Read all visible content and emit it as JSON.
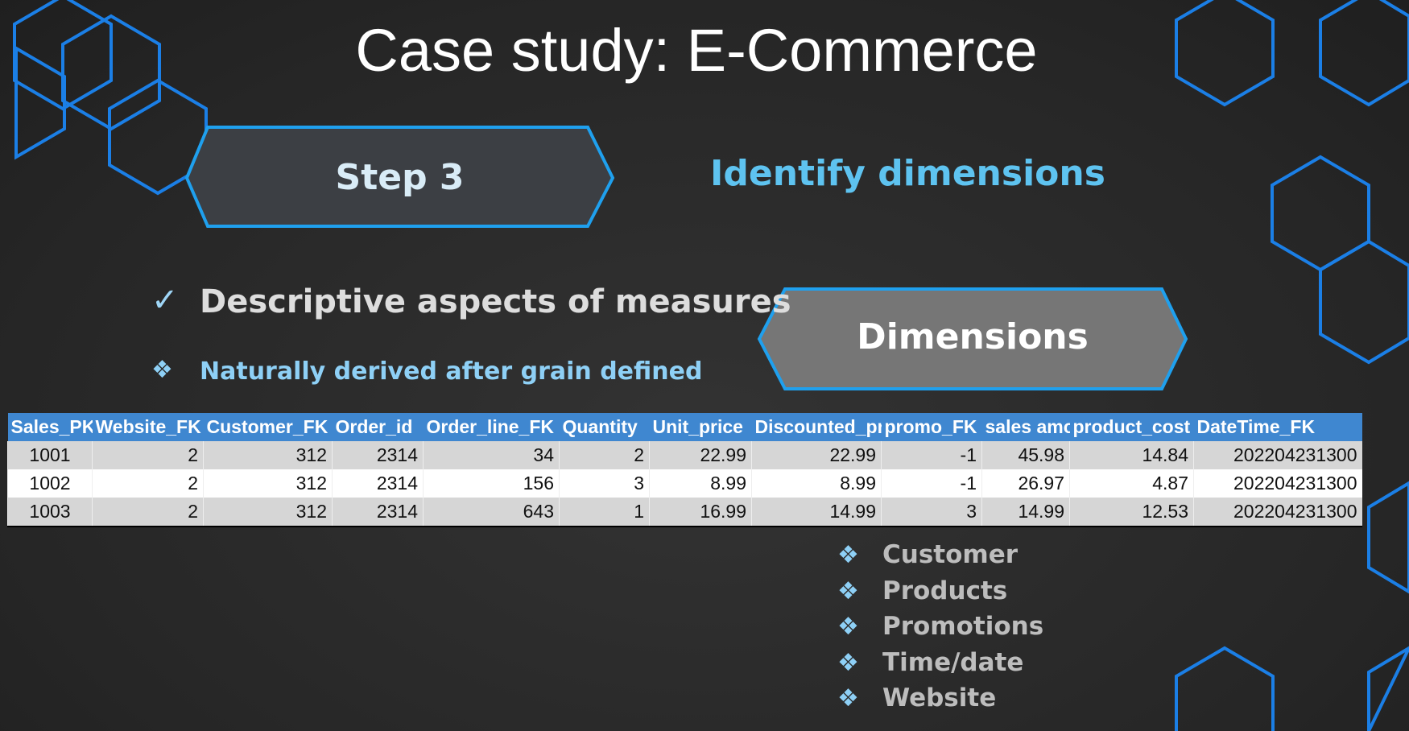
{
  "slide": {
    "title": "Case study: E-Commerce",
    "step_label": "Step 3",
    "step_heading": "Identify dimensions",
    "check_point": "Descriptive aspects of measures",
    "sub_point": "Naturally derived after grain defined",
    "dimensions_label": "Dimensions",
    "table": {
      "headers": [
        "Sales_PK",
        "Website_FK",
        "Customer_FK",
        "Order_id",
        "Order_line_FK",
        "Quantity",
        "Unit_price",
        "Discounted_pr",
        "promo_FK",
        "sales amo",
        "product_cost",
        "DateTime_FK"
      ],
      "rows": [
        [
          "1001",
          "2",
          "312",
          "2314",
          "34",
          "2",
          "22.99",
          "22.99",
          "-1",
          "45.98",
          "14.84",
          "202204231300"
        ],
        [
          "1002",
          "2",
          "312",
          "2314",
          "156",
          "3",
          "8.99",
          "8.99",
          "-1",
          "26.97",
          "4.87",
          "202204231300"
        ],
        [
          "1003",
          "2",
          "312",
          "2314",
          "643",
          "1",
          "16.99",
          "14.99",
          "3",
          "14.99",
          "12.53",
          "202204231300"
        ]
      ]
    },
    "dimension_list": [
      "Customer",
      "Products",
      "Promotions",
      "Time/date",
      "Website"
    ]
  }
}
